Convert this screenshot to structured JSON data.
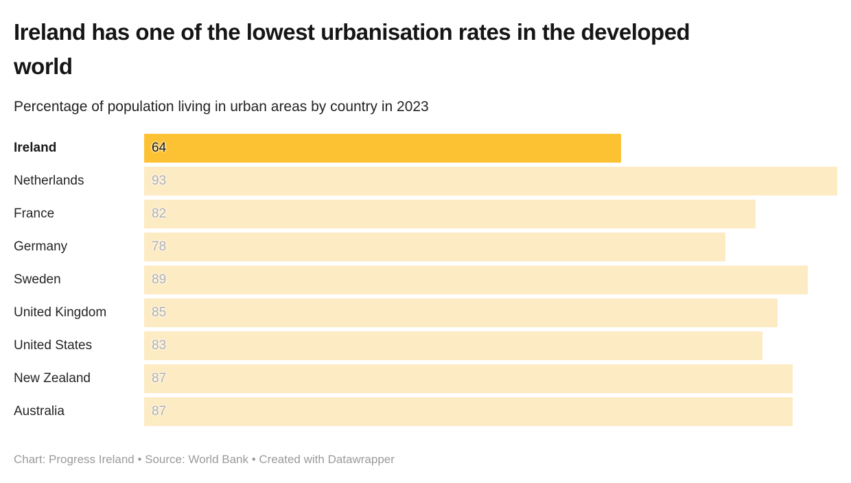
{
  "chart_data": {
    "type": "bar",
    "orientation": "horizontal",
    "title": "Ireland has one of the lowest urbanisation rates in the developed world",
    "subtitle": "Percentage of population living in urban areas by country in 2023",
    "categories": [
      "Ireland",
      "Netherlands",
      "France",
      "Germany",
      "Sweden",
      "United Kingdom",
      "United States",
      "New Zealand",
      "Australia"
    ],
    "values": [
      64,
      93,
      82,
      78,
      89,
      85,
      83,
      87,
      87
    ],
    "xlim": [
      0,
      93
    ],
    "grid": false,
    "legend": "none",
    "highlighted_category": "Ireland",
    "colors": {
      "bar_highlight": "#FDC233",
      "bar_default": "#FDEBC3",
      "value_label_highlight": "#1a1a1a",
      "value_label_default": "#b0b0b3"
    }
  },
  "footer": {
    "text": "Chart: Progress Ireland • Source: World Bank • Created with Datawrapper"
  }
}
